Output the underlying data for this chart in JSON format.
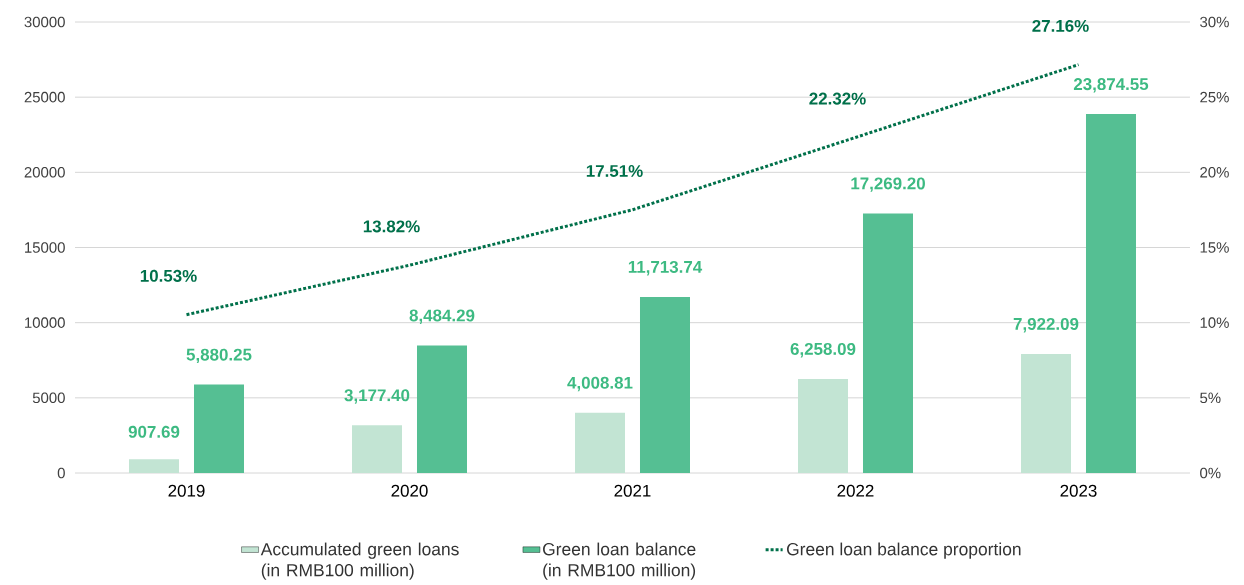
{
  "chart_data": {
    "type": "bar",
    "categories": [
      "2019",
      "2020",
      "2021",
      "2022",
      "2023"
    ],
    "series": [
      {
        "name": "Accumulated green loans (in RMB100 million)",
        "color": "#c2e4d3",
        "values": [
          907.69,
          3177.4,
          4008.81,
          6258.09,
          7922.09
        ],
        "value_labels": [
          "907.69",
          "3,177.40",
          "4,008.81",
          "6,258.09",
          "7,922.09"
        ]
      },
      {
        "name": "Green loan balance (in RMB100 million)",
        "color": "#55bf93",
        "values": [
          5880.25,
          8484.29,
          11713.74,
          17269.2,
          23874.55
        ],
        "value_labels": [
          "5,880.25",
          "8,484.29",
          "11,713.74",
          "17,269.20",
          "23,874.55"
        ]
      },
      {
        "name": "Green loan balance proportion",
        "type": "line",
        "axis": "y2",
        "color": "#00704a",
        "line_style": "dotted",
        "marker": "none",
        "values": [
          10.53,
          13.82,
          17.51,
          22.32,
          27.16
        ],
        "value_labels": [
          "10.53%",
          "13.82%",
          "17.51%",
          "22.32%",
          "27.16%"
        ]
      }
    ],
    "ylim": [
      0,
      30000
    ],
    "yticks": [
      0,
      5000,
      10000,
      15000,
      20000,
      25000,
      30000
    ],
    "y2lim": [
      0,
      30
    ],
    "y2ticks": [
      {
        "value": 0,
        "label": "0%"
      },
      {
        "value": 5,
        "label": "5%"
      },
      {
        "value": 10,
        "label": "10%"
      },
      {
        "value": 15,
        "label": "15%"
      },
      {
        "value": 20,
        "label": "20%"
      },
      {
        "value": 25,
        "label": "25%"
      },
      {
        "value": 30,
        "label": "30%"
      }
    ],
    "grid": "y",
    "legend": "bottom"
  }
}
